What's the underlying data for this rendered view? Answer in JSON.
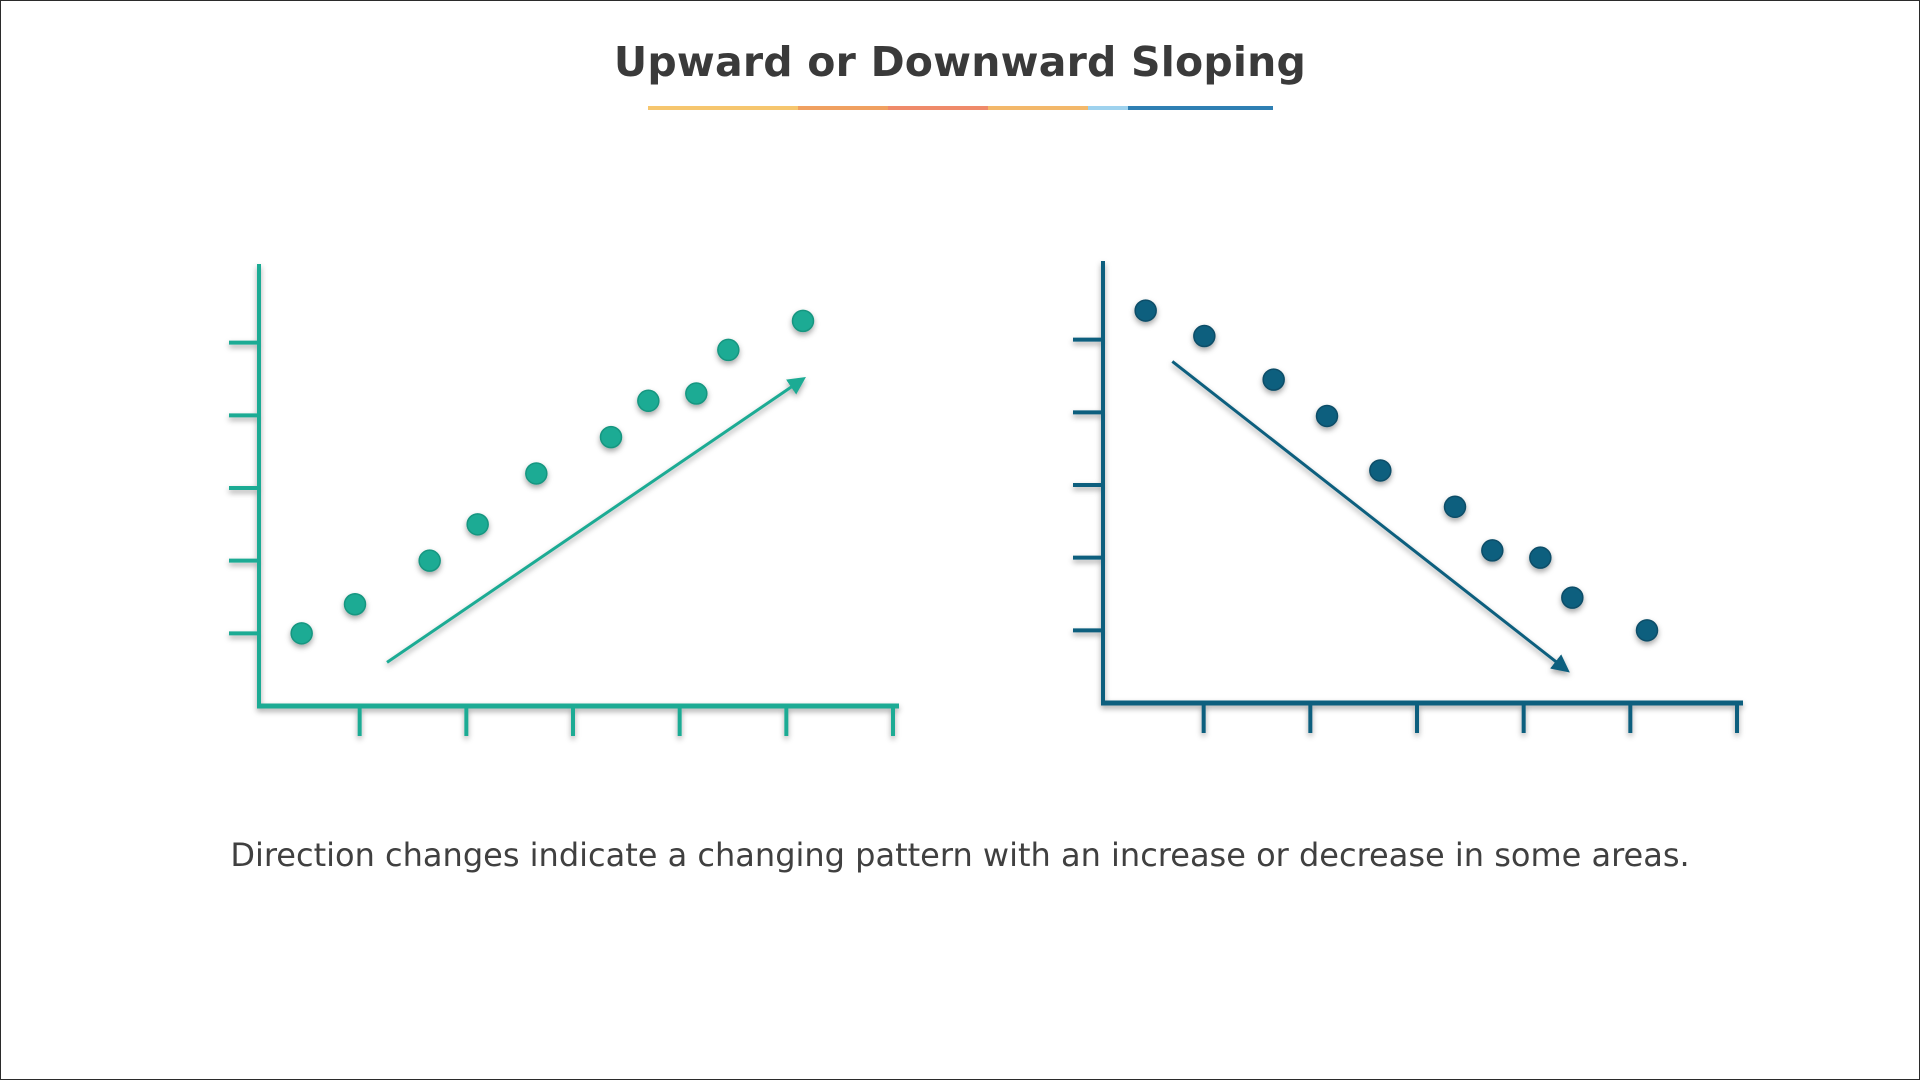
{
  "page": {
    "title": "Upward or Downward Sloping",
    "caption": "Direction changes indicate a changing pattern with an increase or decrease in some areas.",
    "title_rule_colors": [
      "#f6c66e",
      "#f0a060",
      "#ef8a6a",
      "#f3b86a",
      "#9ed2ee",
      "#2e7fb3"
    ]
  },
  "chart_data": [
    {
      "type": "scatter",
      "trend": "upward",
      "color": "#1fab94",
      "stroke": "#159680",
      "xlim": [
        0,
        6
      ],
      "ylim": [
        0,
        6
      ],
      "x_ticks": 6,
      "y_ticks": 5,
      "points": [
        {
          "x": 0.4,
          "y": 1.0
        },
        {
          "x": 0.9,
          "y": 1.4
        },
        {
          "x": 1.6,
          "y": 2.0
        },
        {
          "x": 2.05,
          "y": 2.5
        },
        {
          "x": 2.6,
          "y": 3.2
        },
        {
          "x": 3.3,
          "y": 3.7
        },
        {
          "x": 3.65,
          "y": 4.2
        },
        {
          "x": 4.1,
          "y": 4.3
        },
        {
          "x": 4.4,
          "y": 4.9
        },
        {
          "x": 5.1,
          "y": 5.3
        }
      ],
      "trend_line": {
        "from": [
          1.2,
          0.6
        ],
        "to": [
          5.1,
          4.5
        ]
      }
    },
    {
      "type": "scatter",
      "trend": "downward",
      "color": "#0d5f7e",
      "stroke": "#0a4e68",
      "xlim": [
        0,
        6
      ],
      "ylim": [
        0,
        6
      ],
      "x_ticks": 6,
      "y_ticks": 5,
      "points": [
        {
          "x": 0.4,
          "y": 5.4
        },
        {
          "x": 0.95,
          "y": 5.05
        },
        {
          "x": 1.6,
          "y": 4.45
        },
        {
          "x": 2.1,
          "y": 3.95
        },
        {
          "x": 2.6,
          "y": 3.2
        },
        {
          "x": 3.3,
          "y": 2.7
        },
        {
          "x": 3.65,
          "y": 2.1
        },
        {
          "x": 4.1,
          "y": 2.0
        },
        {
          "x": 4.4,
          "y": 1.45
        },
        {
          "x": 5.1,
          "y": 1.0
        }
      ],
      "trend_line": {
        "from": [
          0.65,
          4.7
        ],
        "to": [
          4.35,
          0.45
        ]
      }
    }
  ]
}
